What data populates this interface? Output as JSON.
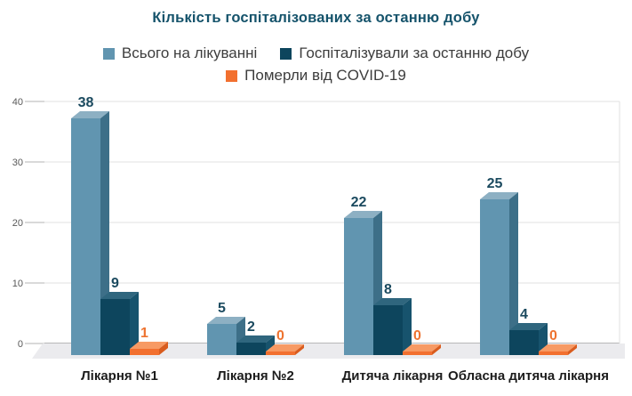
{
  "title": "Кількість госпіталізованих за останню добу",
  "chart_data": {
    "type": "bar",
    "effect": "3d",
    "title": "Кількість госпіталізованих за останню добу",
    "categories": [
      "Лікарня №1",
      "Лікарня №2",
      "Дитяча лікарня",
      "Обласна дитяча лікарня"
    ],
    "series": [
      {
        "name": "Всього на лікуванні",
        "values": [
          38,
          5,
          22,
          25
        ],
        "colors": {
          "front": "#6195b0",
          "top": "#8db0c3",
          "side": "#3d6f88",
          "label": "#1b4a5f"
        }
      },
      {
        "name": "Госпіталізували за останню добу",
        "values": [
          9,
          2,
          8,
          4
        ],
        "colors": {
          "front": "#0d455d",
          "top": "#2f667e",
          "side": "#17536d",
          "label": "#1b4a5f"
        }
      },
      {
        "name": "Померли від COVID-19",
        "values": [
          1,
          0,
          0,
          0
        ],
        "colors": {
          "front": "#f2702f",
          "top": "#f79a64",
          "side": "#d95c1e",
          "label": "#ee7330"
        }
      }
    ],
    "yticks": [
      0,
      10,
      20,
      30,
      40
    ],
    "ylim": [
      0,
      40
    ],
    "xlabel": "",
    "ylabel": "",
    "grid": true,
    "legend_position": "top",
    "title_color": "#15536b",
    "floor_color": "#ebebee",
    "gridline_color": "#e0e0e0",
    "axis_line_color": "#a0a0a0"
  }
}
